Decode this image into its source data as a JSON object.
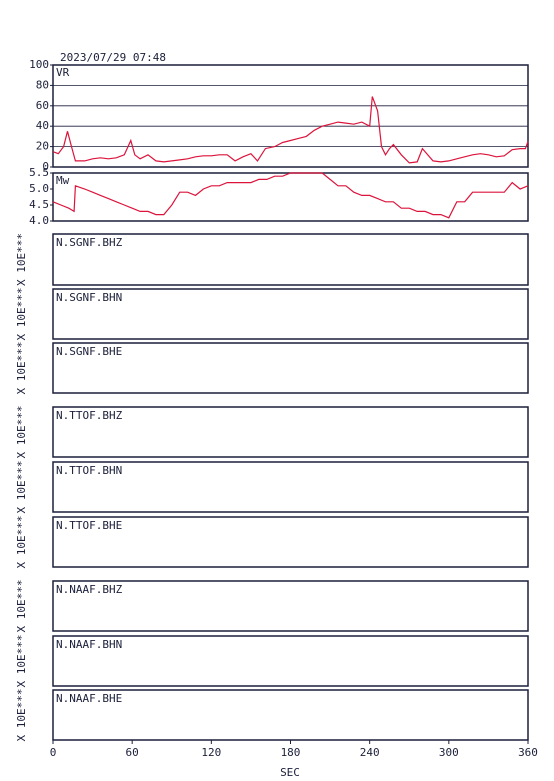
{
  "title": "2023/07/29 07:48",
  "x_axis": {
    "xlim": [
      0,
      360
    ],
    "xticks": [
      0,
      60,
      120,
      180,
      240,
      300,
      360
    ],
    "label": "SEC"
  },
  "chart_data": [
    {
      "type": "line",
      "name": "VR",
      "color": "#dc143c",
      "xlim": [
        0,
        360
      ],
      "ylim": [
        0,
        100
      ],
      "yticks": [
        0,
        20,
        40,
        60,
        80,
        100
      ],
      "grid": true,
      "x": [
        0,
        4,
        8,
        11,
        14,
        17,
        24,
        30,
        36,
        42,
        48,
        54,
        59,
        62,
        66,
        72,
        78,
        84,
        90,
        96,
        102,
        108,
        114,
        120,
        126,
        132,
        138,
        144,
        150,
        155,
        161,
        168,
        174,
        180,
        186,
        192,
        198,
        204,
        210,
        216,
        222,
        228,
        234,
        240,
        242,
        246,
        249,
        252,
        255,
        258,
        264,
        270,
        276,
        280,
        288,
        294,
        300,
        306,
        312,
        318,
        324,
        330,
        336,
        342,
        348,
        354,
        358,
        360
      ],
      "values": [
        15,
        13,
        20,
        35,
        20,
        6,
        6,
        8,
        9,
        8,
        9,
        12,
        26,
        12,
        8,
        12,
        6,
        5,
        6,
        7,
        8,
        10,
        11,
        11,
        12,
        12,
        6,
        10,
        13,
        6,
        18,
        20,
        24,
        26,
        28,
        30,
        36,
        40,
        42,
        44,
        43,
        42,
        44,
        40,
        69,
        55,
        20,
        12,
        18,
        22,
        12,
        4,
        5,
        18,
        6,
        5,
        6,
        8,
        10,
        12,
        13,
        12,
        10,
        11,
        17,
        18,
        18,
        25
      ]
    },
    {
      "type": "line",
      "name": "Mw",
      "color": "#dc143c",
      "xlim": [
        0,
        360
      ],
      "ylim": [
        4,
        5.5
      ],
      "yticks": [
        {
          "value": 4,
          "label": "4.0"
        },
        4.5,
        {
          "value": 5,
          "label": "5.0"
        },
        5.5
      ],
      "grid": false,
      "x": [
        0,
        6,
        12,
        16,
        17,
        24,
        30,
        36,
        42,
        48,
        54,
        60,
        66,
        72,
        78,
        84,
        90,
        96,
        102,
        108,
        114,
        120,
        126,
        132,
        138,
        144,
        150,
        156,
        162,
        168,
        174,
        180,
        186,
        192,
        198,
        204,
        210,
        216,
        222,
        228,
        234,
        240,
        246,
        252,
        258,
        264,
        270,
        276,
        282,
        288,
        294,
        300,
        306,
        312,
        318,
        324,
        330,
        336,
        342,
        348,
        354,
        360
      ],
      "values": [
        4.6,
        4.5,
        4.4,
        4.3,
        5.1,
        5.0,
        4.9,
        4.8,
        4.7,
        4.6,
        4.5,
        4.4,
        4.3,
        4.3,
        4.2,
        4.2,
        4.5,
        4.9,
        4.9,
        4.8,
        5.0,
        5.1,
        5.1,
        5.2,
        5.2,
        5.2,
        5.2,
        5.3,
        5.3,
        5.4,
        5.4,
        5.5,
        5.5,
        5.5,
        5.5,
        5.5,
        5.3,
        5.1,
        5.1,
        4.9,
        4.8,
        4.8,
        4.7,
        4.6,
        4.6,
        4.4,
        4.4,
        4.3,
        4.3,
        4.2,
        4.2,
        4.1,
        4.6,
        4.6,
        4.9,
        4.9,
        4.9,
        4.9,
        4.9,
        5.2,
        5.0,
        5.1
      ]
    },
    {
      "type": "waveform",
      "label": "N.SGNF.BHZ",
      "ylabel": "X 10E***"
    },
    {
      "type": "waveform",
      "label": "N.SGNF.BHN",
      "ylabel": "X 10E***"
    },
    {
      "type": "waveform",
      "label": "N.SGNF.BHE",
      "ylabel": "X 10E***"
    },
    {
      "type": "waveform",
      "label": "N.TTOF.BHZ",
      "ylabel": "X 10E***"
    },
    {
      "type": "waveform",
      "label": "N.TTOF.BHN",
      "ylabel": "X 10E***"
    },
    {
      "type": "waveform",
      "label": "N.TTOF.BHE",
      "ylabel": "X 10E***"
    },
    {
      "type": "waveform",
      "label": "N.NAAF.BHZ",
      "ylabel": "X 10E***"
    },
    {
      "type": "waveform",
      "label": "N.NAAF.BHN",
      "ylabel": "X 10E***"
    },
    {
      "type": "waveform",
      "label": "N.NAAF.BHE",
      "ylabel": "X 10E***"
    }
  ]
}
